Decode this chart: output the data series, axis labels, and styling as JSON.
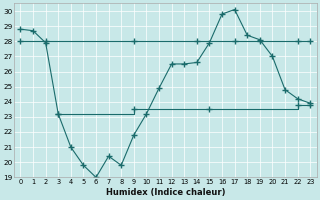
{
  "xlabel": "Humidex (Indice chaleur)",
  "xlim": [
    -0.5,
    23.5
  ],
  "ylim": [
    19,
    30.5
  ],
  "yticks": [
    19,
    20,
    21,
    22,
    23,
    24,
    25,
    26,
    27,
    28,
    29,
    30
  ],
  "xticks": [
    0,
    1,
    2,
    3,
    4,
    5,
    6,
    7,
    8,
    9,
    10,
    11,
    12,
    13,
    14,
    15,
    16,
    17,
    18,
    19,
    20,
    21,
    22,
    23
  ],
  "background_color": "#c8e8e8",
  "grid_color": "#ffffff",
  "line_color": "#1a6b6b",
  "series_main": {
    "x": [
      0,
      1,
      2,
      3,
      4,
      5,
      6,
      7,
      8,
      9,
      10,
      11,
      12,
      13,
      14,
      15,
      16,
      17,
      18,
      19,
      20,
      21,
      22,
      23
    ],
    "y": [
      28.8,
      28.7,
      27.9,
      23.2,
      21.0,
      19.8,
      19.0,
      20.4,
      19.8,
      21.8,
      23.2,
      24.9,
      26.5,
      26.5,
      26.6,
      27.9,
      29.8,
      30.1,
      28.4,
      28.1,
      27.0,
      24.8,
      24.2,
      23.9
    ]
  },
  "series_upper": {
    "x": [
      0,
      2,
      2,
      9,
      9,
      14,
      14,
      17,
      17,
      19,
      19,
      22,
      22,
      23
    ],
    "y": [
      28.0,
      28.0,
      28.0,
      28.0,
      28.0,
      28.0,
      28.0,
      28.0,
      28.0,
      28.0,
      28.0,
      28.0,
      28.0,
      28.0
    ],
    "markers_x": [
      0,
      2,
      9,
      14,
      17,
      19,
      22,
      23
    ],
    "markers_y": [
      28.0,
      28.0,
      28.0,
      28.0,
      28.0,
      28.0,
      28.0,
      28.0
    ]
  },
  "series_lower": {
    "x": [
      3,
      9,
      9,
      15,
      15,
      22,
      22,
      23
    ],
    "y": [
      23.2,
      23.2,
      23.5,
      23.5,
      23.5,
      23.5,
      23.8,
      23.8
    ],
    "markers_x": [
      3,
      9,
      15,
      22,
      23
    ],
    "markers_y": [
      23.2,
      23.5,
      23.5,
      23.8,
      23.8
    ]
  }
}
